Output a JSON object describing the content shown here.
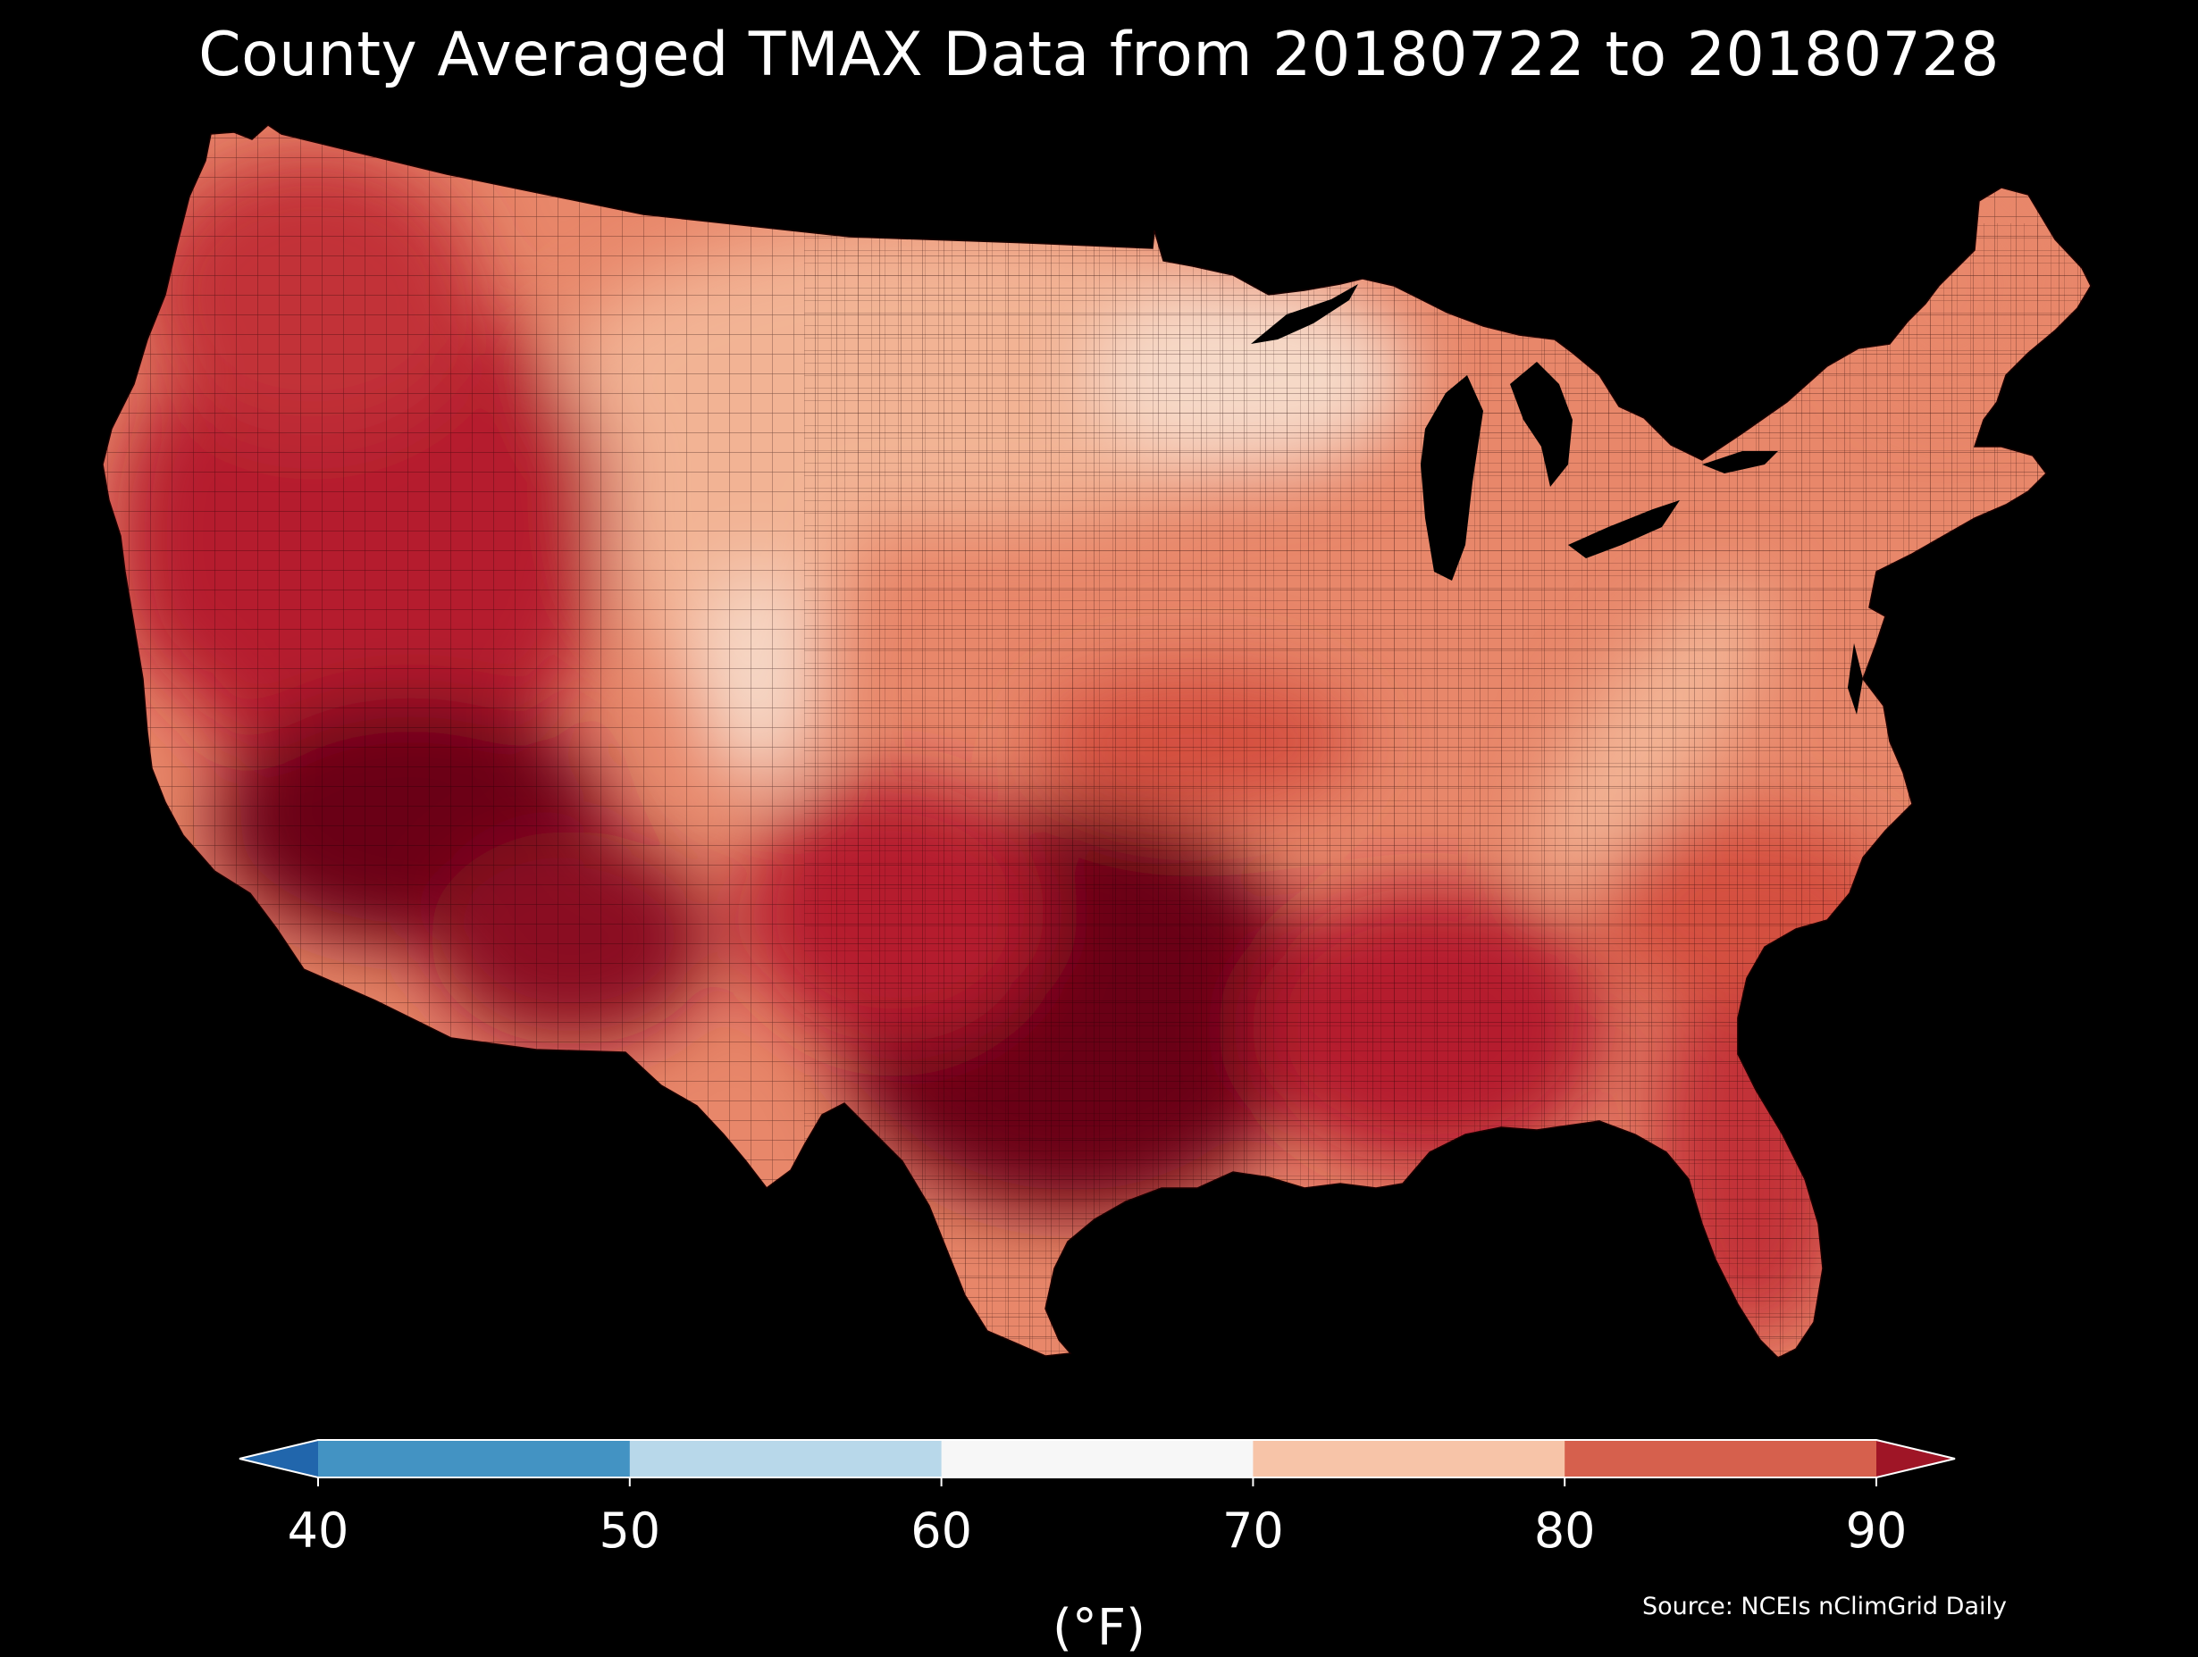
{
  "title": "County Averaged TMAX Data from 20180722 to 20180728",
  "colorbar": {
    "ticks": [
      "40",
      "50",
      "60",
      "70",
      "80",
      "90"
    ],
    "units": "(°F)",
    "bins": [
      {
        "from": null,
        "to": 40,
        "color": "#2166ac"
      },
      {
        "from": 40,
        "to": 50,
        "color": "#4393c3"
      },
      {
        "from": 50,
        "to": 60,
        "color": "#b8d8ea"
      },
      {
        "from": 60,
        "to": 70,
        "color": "#f7f7f7"
      },
      {
        "from": 70,
        "to": 80,
        "color": "#f7c4a8"
      },
      {
        "from": 80,
        "to": 90,
        "color": "#d6604d"
      },
      {
        "from": 90,
        "to": null,
        "color": "#9f1526"
      }
    ]
  },
  "source": "Source: NCEIs nClimGrid Daily",
  "map": {
    "region": "Contiguous United States (county level)",
    "variable": "TMAX",
    "palette": {
      "coolest": "#f6d9c8",
      "cool": "#f2b394",
      "mild": "#e8876a",
      "warm": "#d4503f",
      "hot": "#b51f2e",
      "hottest": "#6b0018"
    },
    "background": "#000000",
    "lakes_color": "#000000"
  }
}
